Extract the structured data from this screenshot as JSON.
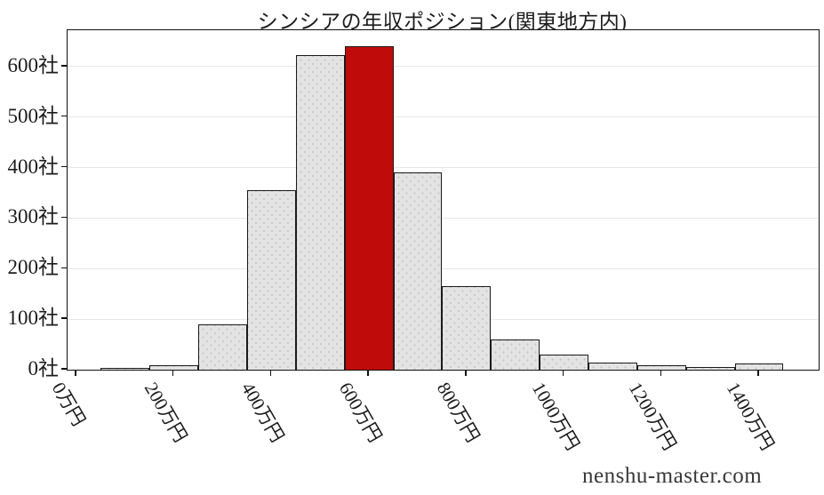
{
  "chart_data": {
    "type": "bar",
    "title": "シンシアの年収ポジション(関東地方内)",
    "xlabel": "",
    "ylabel": "",
    "grid": "horizontal-only",
    "legend": "none",
    "y_unit": "社",
    "x_unit": "万円",
    "ylim": [
      0,
      672
    ],
    "y_tick_values": [
      0,
      100,
      200,
      300,
      400,
      500,
      600
    ],
    "y_tick_labels": [
      "0社",
      "100社",
      "200社",
      "300社",
      "400社",
      "500社",
      "600社"
    ],
    "x_tick_values": [
      0,
      200,
      400,
      600,
      800,
      1000,
      1200,
      1400
    ],
    "x_tick_labels": [
      "0万円",
      "200万円",
      "400万円",
      "600万円",
      "800万円",
      "1000万円",
      "1200万円",
      "1400万円"
    ],
    "bin_width": 100,
    "bar_centers": [
      100,
      200,
      300,
      400,
      500,
      600,
      700,
      800,
      900,
      1000,
      1100,
      1200,
      1300,
      1400
    ],
    "values": [
      3,
      8,
      90,
      355,
      623,
      641,
      391,
      165,
      60,
      30,
      14,
      8,
      5,
      13
    ],
    "highlight_index": 5,
    "highlight_center_label": "600万円",
    "colors": {
      "bar_fill": "#e3e3e3",
      "bar_hatch_dots": "#c2c2c2",
      "bar_edge": "#1a1a1a",
      "highlight_fill": "#c00b0b",
      "gridline": "#e7e7e7",
      "axis": "#111111",
      "text": "#1c1c1c"
    }
  },
  "footer": {
    "watermark": "nenshu-master.com"
  }
}
